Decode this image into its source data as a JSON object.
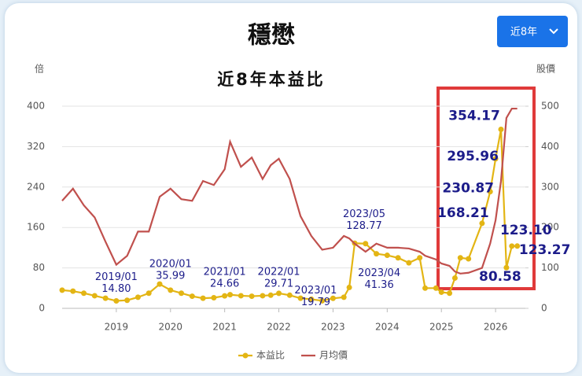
{
  "chart_data": {
    "type": "line",
    "title": "穩懋",
    "subtitle": "近8年本益比",
    "dropdown": "近8年",
    "y_axis_label": "倍",
    "y2_axis_label": "股價",
    "x": [
      2018.0,
      2018.2,
      2018.4,
      2018.6,
      2018.8,
      2019.0,
      2019.2,
      2019.4,
      2019.6,
      2019.8,
      2020.0,
      2020.2,
      2020.4,
      2020.6,
      2020.8,
      2021.0,
      2021.1,
      2021.3,
      2021.5,
      2021.7,
      2021.85,
      2022.0,
      2022.2,
      2022.4,
      2022.6,
      2022.8,
      2023.0,
      2023.2,
      2023.3,
      2023.4,
      2023.6,
      2023.8,
      2024.0,
      2024.2,
      2024.4,
      2024.6,
      2024.7,
      2024.9,
      2025.0,
      2025.15,
      2025.25,
      2025.35,
      2025.5,
      2025.75,
      2025.9,
      2026.0,
      2026.1,
      2026.2,
      2026.3,
      2026.4
    ],
    "series": [
      {
        "name": "本益比",
        "color": "#e3b514",
        "markers": true,
        "values": [
          36,
          34,
          30,
          25,
          20,
          14.8,
          16,
          22,
          30,
          48,
          35.99,
          30,
          24,
          20,
          21,
          24.66,
          27,
          25,
          24,
          25,
          26,
          29.71,
          26,
          20,
          18,
          15,
          19.79,
          22,
          41.36,
          128.77,
          128,
          108,
          105,
          100,
          90,
          100,
          40,
          40,
          32,
          30,
          60,
          100,
          98,
          168.21,
          230.87,
          295.96,
          354.17,
          80.58,
          123.1,
          123.27
        ]
      },
      {
        "name": "月均價",
        "color": "#c0504d",
        "axis": "y2",
        "markers": false,
        "values": [
          266,
          296,
          255,
          225,
          165,
          108,
          130,
          190,
          190,
          276,
          296,
          270,
          266,
          315,
          305,
          344,
          412,
          350,
          373,
          320,
          354,
          370,
          320,
          228,
          179,
          145,
          150,
          179,
          173,
          160,
          140,
          160,
          150,
          150,
          148,
          140,
          130,
          121,
          111,
          105,
          91,
          86,
          88,
          100,
          160,
          218,
          315,
          471,
          494,
          494
        ]
      }
    ],
    "xlim": [
      2018,
      2026.55
    ],
    "xticks": [
      2019,
      2020,
      2021,
      2022,
      2023,
      2024,
      2025,
      2026
    ],
    "ylim": [
      0,
      400
    ],
    "yticks": [
      0,
      80,
      160,
      240,
      320,
      400
    ],
    "y2lim": [
      0,
      500
    ],
    "y2ticks": [
      0,
      100,
      200,
      300,
      400,
      500
    ],
    "grid": true,
    "legend": "bottom",
    "annotations": [
      {
        "x": 2019.0,
        "label": "2019/01",
        "value": 14.8,
        "value_label": "14.80"
      },
      {
        "x": 2020.0,
        "label": "2020/01",
        "value": 35.99
      },
      {
        "x": 2021.0,
        "label": "2021/01",
        "value": 24.66
      },
      {
        "x": 2022.0,
        "label": "2022/01",
        "value": 29.71
      },
      {
        "x": 2023.0,
        "label": "2023/01",
        "value": 19.79
      },
      {
        "x": 2023.4,
        "label": "2023/05",
        "value": 128.77
      },
      {
        "x": 2023.3,
        "label": "2023/04",
        "value": 41.36
      },
      {
        "x": 2026.1,
        "value": 354.17
      },
      {
        "x": 2026.0,
        "value": 295.96
      },
      {
        "x": 2025.9,
        "value": 230.87
      },
      {
        "x": 2025.75,
        "value": 168.21
      },
      {
        "x": 2026.2,
        "value": 80.58
      },
      {
        "x": 2026.3,
        "value": 123.1,
        "value_label": "123.10"
      },
      {
        "x": 2026.4,
        "value": 123.27
      }
    ]
  }
}
